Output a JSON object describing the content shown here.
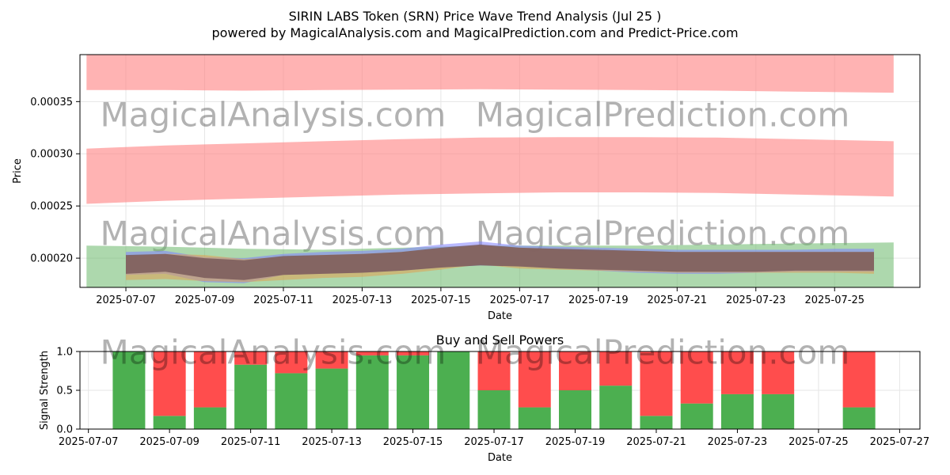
{
  "title": "SIRIN LABS Token (SRN) Price Wave Trend Analysis (Jul 25 )",
  "subtitle": "powered by MagicalAnalysis.com and MagicalPrediction.com and Predict-Price.com",
  "watermarks": [
    "MagicalAnalysis.com",
    "MagicalPrediction.com"
  ],
  "colors": {
    "upper_band": "#ff8080",
    "lower_band": "#6ab86a",
    "buy": "#4caf50",
    "sell": "#ff4d4d",
    "price_wave": "#7a5a5a"
  },
  "chart_data": [
    {
      "type": "area",
      "title": "",
      "xlabel": "Date",
      "ylabel": "Price",
      "xlim": [
        "2025-07-05T20:00",
        "2025-07-27T04:00"
      ],
      "ylim": [
        0.000172,
        0.000395
      ],
      "grid": true,
      "x_ticks": [
        "2025-07-07",
        "2025-07-09",
        "2025-07-11",
        "2025-07-13",
        "2025-07-15",
        "2025-07-17",
        "2025-07-19",
        "2025-07-21",
        "2025-07-23",
        "2025-07-25"
      ],
      "y_ticks": [
        0.0002,
        0.00025,
        0.0003,
        0.00035
      ],
      "y_tick_labels": [
        "0.00020",
        "0.00025",
        "0.00030",
        "0.00035"
      ],
      "bands": [
        {
          "x": [
            "2025-07-06",
            "2025-07-08",
            "2025-07-10",
            "2025-07-12",
            "2025-07-14",
            "2025-07-16",
            "2025-07-18",
            "2025-07-20",
            "2025-07-22",
            "2025-07-24",
            "2025-07-26T12:00"
          ],
          "upper": [
            0.000398,
            0.000398,
            0.000398,
            0.000398,
            0.000398,
            0.000398,
            0.000398,
            0.000398,
            0.000398,
            0.000398,
            0.000398
          ],
          "lower": [
            0.000361,
            0.000361,
            0.0003605,
            0.000361,
            0.0003615,
            0.0003618,
            0.0003615,
            0.000361,
            0.0003605,
            0.0003595,
            0.0003585
          ],
          "color": "#ff8080"
        },
        {
          "x": [
            "2025-07-06",
            "2025-07-08",
            "2025-07-10",
            "2025-07-12",
            "2025-07-14",
            "2025-07-16",
            "2025-07-18",
            "2025-07-20",
            "2025-07-22",
            "2025-07-24",
            "2025-07-26T12:00"
          ],
          "upper": [
            0.000305,
            0.000308,
            0.00031,
            0.000312,
            0.000314,
            0.0003155,
            0.000316,
            0.000316,
            0.0003155,
            0.000314,
            0.000312
          ],
          "lower": [
            0.000252,
            0.000255,
            0.000257,
            0.000259,
            0.000261,
            0.000262,
            0.000263,
            0.000263,
            0.0002625,
            0.000261,
            0.000259
          ],
          "color": "#ff8080"
        },
        {
          "x": [
            "2025-07-06",
            "2025-07-08",
            "2025-07-10",
            "2025-07-12",
            "2025-07-14",
            "2025-07-16",
            "2025-07-18",
            "2025-07-20",
            "2025-07-22",
            "2025-07-24",
            "2025-07-26T12:00"
          ],
          "upper": [
            0.000212,
            0.000211,
            0.000209,
            0.000208,
            0.00021,
            0.000212,
            0.000212,
            0.000212,
            0.000213,
            0.000214,
            0.000215
          ],
          "lower": [
            0.000172,
            0.000172,
            0.000172,
            0.000172,
            0.000172,
            0.000172,
            0.000172,
            0.000172,
            0.000172,
            0.000172,
            0.000172
          ],
          "color": "#6ab86a"
        }
      ],
      "series": [
        {
          "x": [
            "2025-07-07",
            "2025-07-08",
            "2025-07-09",
            "2025-07-10",
            "2025-07-11",
            "2025-07-12",
            "2025-07-13",
            "2025-07-14",
            "2025-07-15",
            "2025-07-16",
            "2025-07-17",
            "2025-07-18",
            "2025-07-19",
            "2025-07-20",
            "2025-07-21",
            "2025-07-22",
            "2025-07-23",
            "2025-07-24",
            "2025-07-25",
            "2025-07-26"
          ],
          "upper": [
            0.000206,
            0.000207,
            0.000201,
            0.0002,
            0.000204,
            0.000206,
            0.000207,
            0.000209,
            0.000213,
            0.000216,
            0.000212,
            0.000211,
            0.00021,
            0.000209,
            0.000208,
            0.000208,
            0.000208,
            0.000208,
            0.000209,
            0.000209
          ],
          "lower": [
            0.000184,
            0.000185,
            0.000177,
            0.000176,
            0.000184,
            0.000185,
            0.000186,
            0.000188,
            0.000191,
            0.000193,
            0.000192,
            0.00019,
            0.000188,
            0.000186,
            0.000185,
            0.000185,
            0.000186,
            0.000187,
            0.000187,
            0.000187
          ],
          "color": "#8080ff"
        },
        {
          "x": [
            "2025-07-07",
            "2025-07-08",
            "2025-07-09",
            "2025-07-10",
            "2025-07-11",
            "2025-07-12",
            "2025-07-13",
            "2025-07-14",
            "2025-07-15",
            "2025-07-16",
            "2025-07-17",
            "2025-07-18",
            "2025-07-19",
            "2025-07-20",
            "2025-07-21",
            "2025-07-22",
            "2025-07-23",
            "2025-07-24",
            "2025-07-25",
            "2025-07-26"
          ],
          "upper": [
            0.000202,
            0.000204,
            0.000203,
            0.000199,
            0.000201,
            0.000203,
            0.000204,
            0.000206,
            0.000209,
            0.000212,
            0.00021,
            0.000208,
            0.000207,
            0.000207,
            0.000206,
            0.000206,
            0.000206,
            0.000206,
            0.000206,
            0.000206
          ],
          "lower": [
            0.000179,
            0.00018,
            0.000178,
            0.000177,
            0.000179,
            0.000181,
            0.000182,
            0.000185,
            0.000189,
            0.000194,
            0.00019,
            0.000189,
            0.000188,
            0.000187,
            0.000186,
            0.000186,
            0.000186,
            0.000186,
            0.000186,
            0.000185
          ],
          "color": "#e0a050"
        },
        {
          "x": [
            "2025-07-07",
            "2025-07-08",
            "2025-07-09",
            "2025-07-10",
            "2025-07-11",
            "2025-07-12",
            "2025-07-13",
            "2025-07-14",
            "2025-07-15",
            "2025-07-16",
            "2025-07-17",
            "2025-07-18",
            "2025-07-19",
            "2025-07-20",
            "2025-07-21",
            "2025-07-22",
            "2025-07-23",
            "2025-07-24",
            "2025-07-25",
            "2025-07-26"
          ],
          "upper": [
            0.000203,
            0.000204,
            0.0002,
            0.000198,
            0.000202,
            0.000203,
            0.000204,
            0.000206,
            0.00021,
            0.000213,
            0.00021,
            0.000209,
            0.000208,
            0.000207,
            0.000206,
            0.000206,
            0.000206,
            0.000206,
            0.000206,
            0.000206
          ],
          "lower": [
            0.000185,
            0.000187,
            0.000181,
            0.000179,
            0.000184,
            0.000185,
            0.000186,
            0.000188,
            0.000191,
            0.000193,
            0.000192,
            0.00019,
            0.000189,
            0.000188,
            0.000187,
            0.000187,
            0.000187,
            0.000188,
            0.000188,
            0.000188
          ],
          "color": "#7a5a5a"
        }
      ]
    },
    {
      "type": "bar",
      "title": "Buy and Sell Powers",
      "xlabel": "Date",
      "ylabel": "Signal Strength",
      "xlim": [
        "2025-07-06T19:00",
        "2025-07-27T12:00"
      ],
      "ylim": [
        0,
        1
      ],
      "grid": true,
      "x_ticks": [
        "2025-07-07",
        "2025-07-09",
        "2025-07-11",
        "2025-07-13",
        "2025-07-15",
        "2025-07-17",
        "2025-07-19",
        "2025-07-21",
        "2025-07-23",
        "2025-07-25",
        "2025-07-27"
      ],
      "y_ticks": [
        0,
        0.5,
        1
      ],
      "y_tick_labels": [
        "0.0",
        "0.5",
        "1.0"
      ],
      "categories": [
        "2025-07-08",
        "2025-07-09",
        "2025-07-10",
        "2025-07-11",
        "2025-07-12",
        "2025-07-13",
        "2025-07-14",
        "2025-07-15",
        "2025-07-16",
        "2025-07-17",
        "2025-07-18",
        "2025-07-19",
        "2025-07-20",
        "2025-07-21",
        "2025-07-22",
        "2025-07-23",
        "2025-07-24",
        "2025-07-26"
      ],
      "series": [
        {
          "values": [
            1.0,
            0.17,
            0.28,
            0.83,
            0.72,
            0.78,
            0.95,
            0.95,
            1.0,
            0.5,
            0.28,
            0.5,
            0.56,
            0.17,
            0.33,
            0.45,
            0.45,
            0.28
          ],
          "color": "#4caf50"
        },
        {
          "values": [
            0.0,
            0.83,
            0.72,
            0.17,
            0.28,
            0.22,
            0.05,
            0.05,
            0.0,
            0.5,
            0.72,
            0.5,
            0.44,
            0.83,
            0.67,
            0.55,
            0.55,
            0.72
          ],
          "color": "#ff4d4d"
        }
      ]
    }
  ]
}
